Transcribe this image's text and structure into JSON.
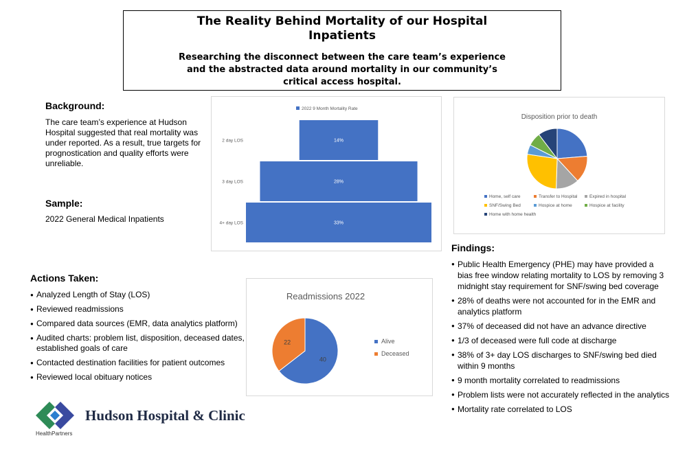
{
  "header": {
    "title": "The Reality Behind Mortality of our Hospital Inpatients",
    "subtitle": "Researching the disconnect between the care team’s experience and the abstracted data around mortality in our community’s critical access hospital."
  },
  "background": {
    "heading": "Background:",
    "text": "The care team’s experience at Hudson Hospital suggested that real mortality was under reported.  As a result, true targets for prognostication and quality efforts were unreliable."
  },
  "sample": {
    "heading": "Sample:",
    "text": "2022 General Medical Inpatients"
  },
  "actions": {
    "heading": "Actions Taken:",
    "items": [
      "Analyzed Length of Stay (LOS)",
      "Reviewed readmissions",
      "Compared data sources (EMR, data analytics platform)",
      "Audited charts: problem list, disposition, deceased dates, established goals of care",
      "Contacted destination facilities for patient outcomes",
      "Reviewed local obituary notices"
    ]
  },
  "findings": {
    "heading": "Findings:",
    "items": [
      "Public Health Emergency (PHE) may have provided a bias free window relating mortality to LOS by removing 3 midnight stay requirement for SNF/swing bed coverage",
      "28% of deaths were not accounted for in the EMR and analytics platform",
      "37% of deceased did not have an advance directive",
      "1/3 of deceased were full code at discharge",
      "38% of 3+ day LOS discharges to SNF/swing bed died within 9 months",
      "9 month mortality correlated to readmissions",
      "Problem lists were not accurately reflected in the analytics",
      "Mortality rate correlated to LOS"
    ]
  },
  "logo": {
    "name": "Hudson Hospital & Clinic",
    "parent": "HealthPartners"
  },
  "colors": {
    "bar": "#4472c4",
    "alive": "#4472c4",
    "deceased": "#ed7d31"
  },
  "chart_data": [
    {
      "type": "bar",
      "orientation": "horizontal",
      "title": "",
      "legend": [
        "2022 9 Month Mortality Rate"
      ],
      "categories": [
        "2 day LOS",
        "3 day LOS",
        "4+ day LOS"
      ],
      "values": [
        14,
        28,
        33
      ],
      "data_labels": [
        "14%",
        "28%",
        "33%"
      ],
      "unit": "%"
    },
    {
      "type": "pie",
      "title": "Disposition prior to death",
      "legend_position": "bottom",
      "categories": [
        "Home, self care",
        "Transfer to Hospital",
        "Expired in hospital",
        "SNF/Swing Bed",
        "Hospice at home",
        "Hospice at facility",
        "Home with home health"
      ],
      "values": [
        23,
        14,
        12,
        26,
        5,
        7,
        10
      ],
      "colors": [
        "#4472c4",
        "#ed7d31",
        "#a5a5a5",
        "#ffc000",
        "#5b9bd5",
        "#70ad47",
        "#264478"
      ]
    },
    {
      "type": "pie",
      "title": "Readmissions 2022",
      "legend_position": "right",
      "categories": [
        "Alive",
        "Deceased"
      ],
      "values": [
        40,
        22
      ],
      "data_labels": [
        "40",
        "22"
      ],
      "colors": [
        "#4472c4",
        "#ed7d31"
      ]
    }
  ]
}
